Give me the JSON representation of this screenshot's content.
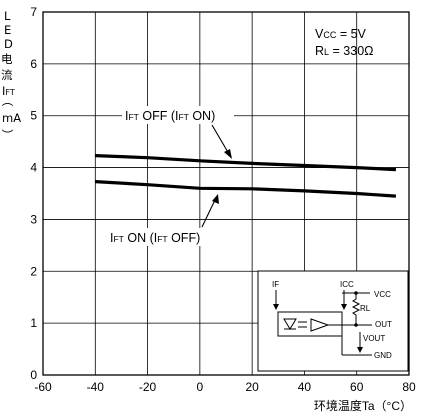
{
  "chart_data": {
    "type": "line",
    "title": "",
    "xlabel": "环境温度Ta（°C）",
    "ylabel": [
      "L",
      "E",
      "D",
      "电",
      "流",
      "I",
      "FT",
      "（",
      "mA",
      "）"
    ],
    "xlim": [
      -60,
      80
    ],
    "ylim": [
      0,
      7
    ],
    "xticks": [
      "-60",
      "-40",
      "-20",
      "0",
      "20",
      "40",
      "60",
      "80"
    ],
    "yticks": [
      "0",
      "1",
      "2",
      "3",
      "4",
      "5",
      "6",
      "7"
    ],
    "grid": true,
    "conditions": [
      {
        "main": "V",
        "sub": "CC",
        "rest": " = 5V"
      },
      {
        "main": "R",
        "sub": "L",
        "rest": " = 330Ω"
      }
    ],
    "series": [
      {
        "name": "IFT OFF (IFT ON)",
        "label_parts": [
          [
            "I",
            "FT",
            " OFF (I",
            "FT",
            " ON)"
          ]
        ],
        "x": [
          -40,
          -20,
          0,
          20,
          40,
          60,
          75
        ],
        "y": [
          4.23,
          4.19,
          4.13,
          4.08,
          4.04,
          4.0,
          3.96
        ]
      },
      {
        "name": "IFT ON (IFT OFF)",
        "label_parts": [
          [
            "I",
            "FT",
            " ON (I",
            "FT",
            " OFF)"
          ]
        ],
        "x": [
          -40,
          -20,
          0,
          20,
          40,
          60,
          75
        ],
        "y": [
          3.73,
          3.67,
          3.6,
          3.59,
          3.55,
          3.5,
          3.45
        ]
      }
    ],
    "inset_circuit": {
      "labels": [
        "IF",
        "ICC",
        "VCC",
        "RL",
        "OUT",
        "VOUT",
        "GND"
      ]
    }
  }
}
